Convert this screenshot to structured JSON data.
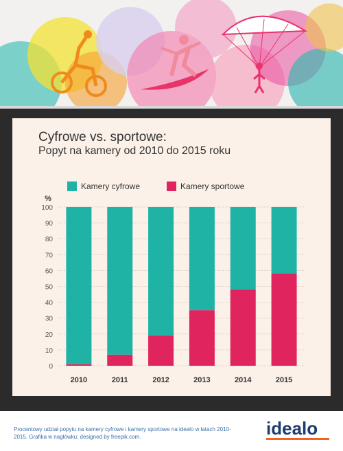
{
  "header": {
    "title_line1": "Cyfrowe vs. sportowe:",
    "title_line2": "Popyt na kamery od 2010 do 2015 roku"
  },
  "colors": {
    "digital": "#1fb3a6",
    "sport": "#e0245e",
    "frame": "#2b2b2b",
    "panel": "#fbf1e9",
    "logo_text": "#1c3d6e",
    "logo_accent": "#f06322"
  },
  "chart_data": {
    "type": "bar",
    "stacked": true,
    "categories": [
      "2010",
      "2011",
      "2012",
      "2013",
      "2014",
      "2015"
    ],
    "series": [
      {
        "name": "Kamery cyfrowe",
        "color": "#1fb3a6",
        "values": [
          99,
          93,
          81,
          65,
          52,
          42
        ]
      },
      {
        "name": "Kamery sportowe",
        "color": "#e0245e",
        "values": [
          1,
          7,
          19,
          35,
          48,
          58
        ]
      }
    ],
    "ylabel": "%",
    "ylim": [
      0,
      100
    ],
    "yticks": [
      0,
      10,
      20,
      30,
      40,
      50,
      60,
      70,
      80,
      90,
      100
    ],
    "grid": true,
    "legend": "top-left"
  },
  "footer": {
    "note": "Procentowy udział popytu na kamery cyfrowe i kamery sportowe na idealo w latach 2010-2015. Grafika w nagłówku: designed by freepik.com.",
    "logo": "idealo"
  }
}
